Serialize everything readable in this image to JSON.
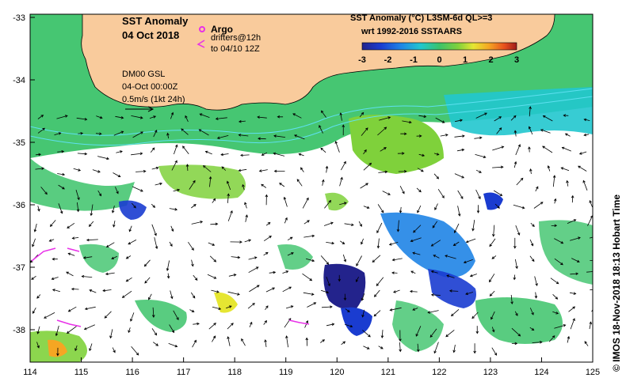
{
  "map": {
    "title": "SST Anomaly",
    "date": "04 Oct 2018",
    "legend": {
      "argo_label": "Argo",
      "drifters_line1": "drifters@12h",
      "drifters_line2": "to 04/10 12Z"
    },
    "current_info": {
      "line1": "DM00 GSL",
      "line2": "04-Oct 00:00Z",
      "line3": "0.5m/s (1kt 24h)"
    },
    "colorbar": {
      "title_line1": "SST Anomaly (°C) L3SM-6d QL>=3",
      "title_line2": "wrt 1992-2016 SSTAARS",
      "ticks": [
        "-3",
        "-2",
        "-1",
        "0",
        "1",
        "2",
        "3"
      ],
      "colors": [
        "#23238c",
        "#1a3cd0",
        "#1f84e6",
        "#21c7ce",
        "#3cc36a",
        "#7fd13b",
        "#e6e632",
        "#f5a623",
        "#e8501e",
        "#9e1c1c"
      ]
    },
    "x_ticks": [
      "114",
      "115",
      "116",
      "117",
      "118",
      "119",
      "120",
      "121",
      "122",
      "123",
      "124",
      "125"
    ],
    "y_ticks": [
      "-33",
      "-34",
      "-35",
      "-36",
      "-37",
      "-38"
    ],
    "land_color": "#f9cb9c",
    "credit": "© IMOS 18-Nov-2018 18:13 Hobart Time"
  }
}
